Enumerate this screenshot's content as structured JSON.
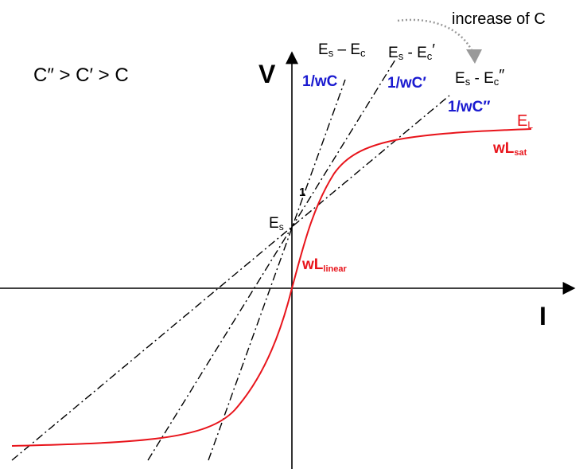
{
  "note": "increase of C",
  "relation": "C″ > C′ > C",
  "axes": {
    "v": "V",
    "i": "I"
  },
  "lines": [
    {
      "e1": "E",
      "s": "s",
      "op": " – ",
      "e2": "E",
      "c": "c",
      "slope": "1/wC"
    },
    {
      "e1": "E",
      "s": "s",
      "op": " - ",
      "e2": "E",
      "c": "c",
      "prime": "′",
      "slope": "1/wC′"
    },
    {
      "e1": "E",
      "s": "s",
      "op": " - ",
      "e2": "E",
      "c": "c",
      "prime": "″",
      "slope": "1/wC″"
    }
  ],
  "curve": {
    "e": "E",
    "l": "L",
    "sat_w": "wL",
    "sat_sub": "sat",
    "lin_w": "wL",
    "lin_sub": "linear"
  },
  "point": {
    "e": "E",
    "s": "s"
  },
  "unit": "1"
}
